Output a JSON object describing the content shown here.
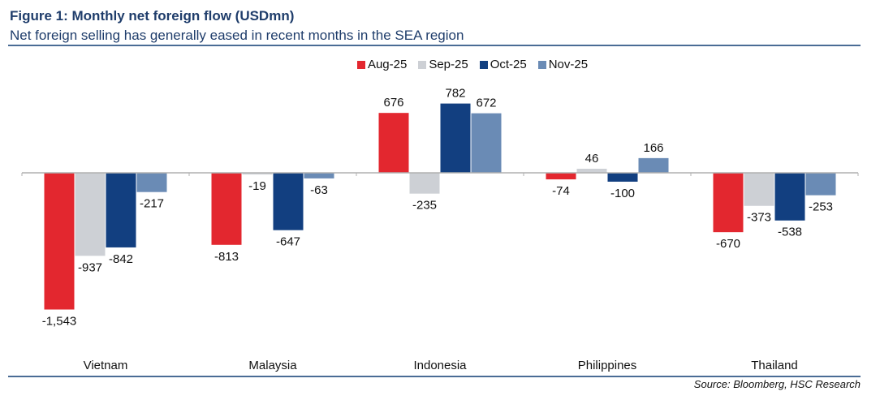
{
  "header": {
    "title": "Figure 1: Monthly net foreign flow (USDmn)",
    "subtitle": "Net foreign selling has generally eased in recent months in the SEA region"
  },
  "footer": {
    "source": "Source: Bloomberg, HSC Research"
  },
  "chart_data": {
    "type": "bar",
    "title": "Monthly net foreign flow (USDmn)",
    "xlabel": "",
    "ylabel": "",
    "categories": [
      "Vietnam",
      "Malaysia",
      "Indonesia",
      "Philippines",
      "Thailand"
    ],
    "series": [
      {
        "name": "Aug-25",
        "color": "#e3272f",
        "values": [
          -1543,
          -813,
          676,
          -74,
          -670
        ],
        "labels": [
          "-1,543",
          "-813",
          "676",
          "-74",
          "-670"
        ]
      },
      {
        "name": "Sep-25",
        "color": "#cdd0d5",
        "values": [
          -937,
          -19,
          -235,
          46,
          -373
        ],
        "labels": [
          "-937",
          "-19",
          "-235",
          "46",
          "-373"
        ]
      },
      {
        "name": "Oct-25",
        "color": "#123f80",
        "values": [
          -842,
          -647,
          782,
          -100,
          -538
        ],
        "labels": [
          "-842",
          "-647",
          "782",
          "-100",
          "-538"
        ]
      },
      {
        "name": "Nov-25",
        "color": "#6a8bb5",
        "values": [
          -217,
          -63,
          672,
          166,
          -253
        ],
        "labels": [
          "-217",
          "-63",
          "672",
          "166",
          "-253"
        ]
      }
    ],
    "ylim": [
      -1700,
      850
    ],
    "grid": false,
    "legend_position": "top-center",
    "axis_color": "#b0b0b0"
  }
}
